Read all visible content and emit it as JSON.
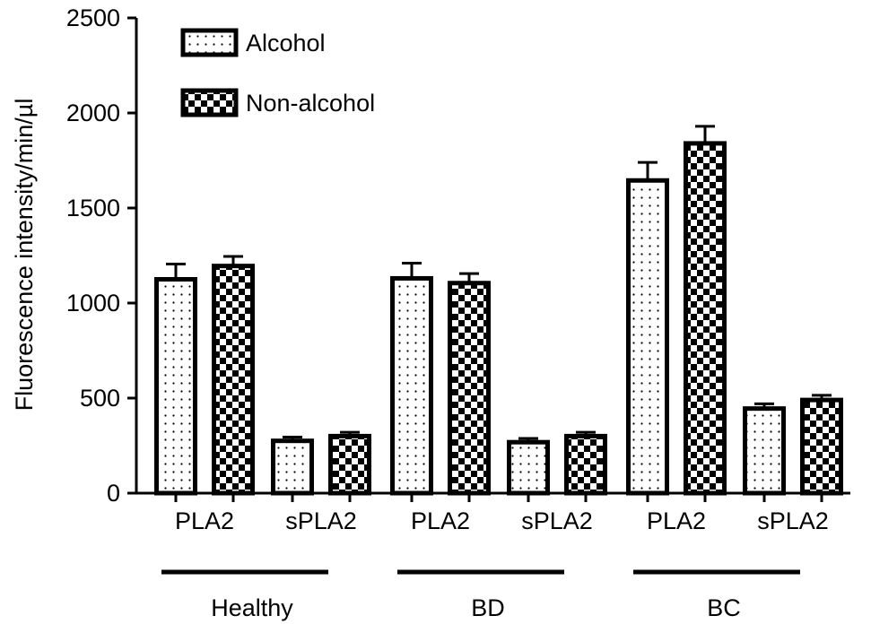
{
  "chart_data": {
    "type": "bar",
    "ylabel": "Fluorescence intensity/min/µl",
    "ylim": [
      0,
      2500
    ],
    "yticks": [
      0,
      500,
      1000,
      1500,
      2000,
      2500
    ],
    "grid": false,
    "legend_position": "top-left",
    "groups": [
      {
        "name": "Healthy",
        "subgroups": [
          {
            "label": "PLA2",
            "values": [
              1125,
              1195
            ],
            "errors": [
              80,
              50
            ]
          },
          {
            "label": "sPLA2",
            "values": [
              275,
              300
            ],
            "errors": [
              20,
              20
            ]
          }
        ]
      },
      {
        "name": "BD",
        "subgroups": [
          {
            "label": "PLA2",
            "values": [
              1130,
              1105
            ],
            "errors": [
              80,
              50
            ]
          },
          {
            "label": "sPLA2",
            "values": [
              268,
              300
            ],
            "errors": [
              20,
              20
            ]
          }
        ]
      },
      {
        "name": "BC",
        "subgroups": [
          {
            "label": "PLA2",
            "values": [
              1645,
              1840
            ],
            "errors": [
              95,
              90
            ]
          },
          {
            "label": "sPLA2",
            "values": [
              445,
              490
            ],
            "errors": [
              25,
              25
            ]
          }
        ]
      }
    ],
    "series": [
      {
        "name": "Alcohol",
        "pattern": "dots"
      },
      {
        "name": "Non-alcohol",
        "pattern": "checker"
      }
    ]
  }
}
